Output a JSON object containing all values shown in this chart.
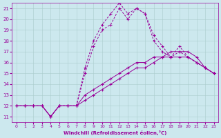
{
  "xlabel": "Windchill (Refroidissement éolien,°C)",
  "background_color": "#cce8ee",
  "line_color": "#990099",
  "grid_color": "#aacccc",
  "xlim": [
    -0.5,
    23.5
  ],
  "ylim": [
    10.5,
    21.5
  ],
  "yticks": [
    11,
    12,
    13,
    14,
    15,
    16,
    17,
    18,
    19,
    20,
    21
  ],
  "xticks": [
    0,
    1,
    2,
    3,
    4,
    5,
    6,
    7,
    8,
    9,
    10,
    11,
    12,
    13,
    14,
    15,
    16,
    17,
    18,
    19,
    20,
    21,
    22,
    23
  ],
  "line1_x": [
    0,
    1,
    2,
    3,
    4,
    5,
    6,
    7,
    8,
    9,
    10,
    11,
    12,
    13,
    14,
    15,
    16,
    17,
    18,
    19,
    20,
    21,
    22,
    23
  ],
  "line1_y": [
    12,
    12,
    12,
    12,
    11,
    12,
    12,
    12,
    12.5,
    13,
    13.5,
    14,
    14.5,
    15,
    15.5,
    15.5,
    16,
    16.5,
    16.5,
    16.5,
    16.5,
    16,
    15.5,
    15
  ],
  "line2_x": [
    0,
    1,
    2,
    3,
    4,
    5,
    6,
    7,
    8,
    9,
    10,
    11,
    12,
    13,
    14,
    15,
    16,
    17,
    18,
    19,
    20,
    21,
    22,
    23
  ],
  "line2_y": [
    12,
    12,
    12,
    12,
    11,
    12,
    12,
    12,
    13,
    13.5,
    14,
    14.5,
    15,
    15.5,
    16,
    16,
    16.5,
    16.5,
    17,
    17,
    17,
    16.5,
    15.5,
    15
  ],
  "line3_x": [
    0,
    1,
    2,
    3,
    4,
    5,
    6,
    7,
    8,
    9,
    10,
    11,
    12,
    13,
    14,
    15,
    16,
    17,
    18,
    19,
    20,
    21,
    22,
    23
  ],
  "line3_y": [
    12,
    12,
    12,
    12,
    11,
    12,
    12,
    12,
    15,
    17.5,
    19,
    19.5,
    21,
    20,
    21,
    20.5,
    18,
    17,
    16.5,
    17,
    16.5,
    16,
    15.5,
    15
  ],
  "line4_x": [
    0,
    1,
    2,
    3,
    4,
    5,
    6,
    7,
    8,
    9,
    10,
    11,
    12,
    13,
    14,
    15,
    16,
    17,
    18,
    19,
    20,
    21,
    22,
    23
  ],
  "line4_y": [
    12,
    12,
    12,
    12,
    11,
    12,
    12,
    12,
    15.5,
    18,
    19.5,
    20.5,
    21.5,
    20.5,
    21,
    20.5,
    18.5,
    17.5,
    16.5,
    17.5,
    16.5,
    16,
    15.5,
    15
  ]
}
